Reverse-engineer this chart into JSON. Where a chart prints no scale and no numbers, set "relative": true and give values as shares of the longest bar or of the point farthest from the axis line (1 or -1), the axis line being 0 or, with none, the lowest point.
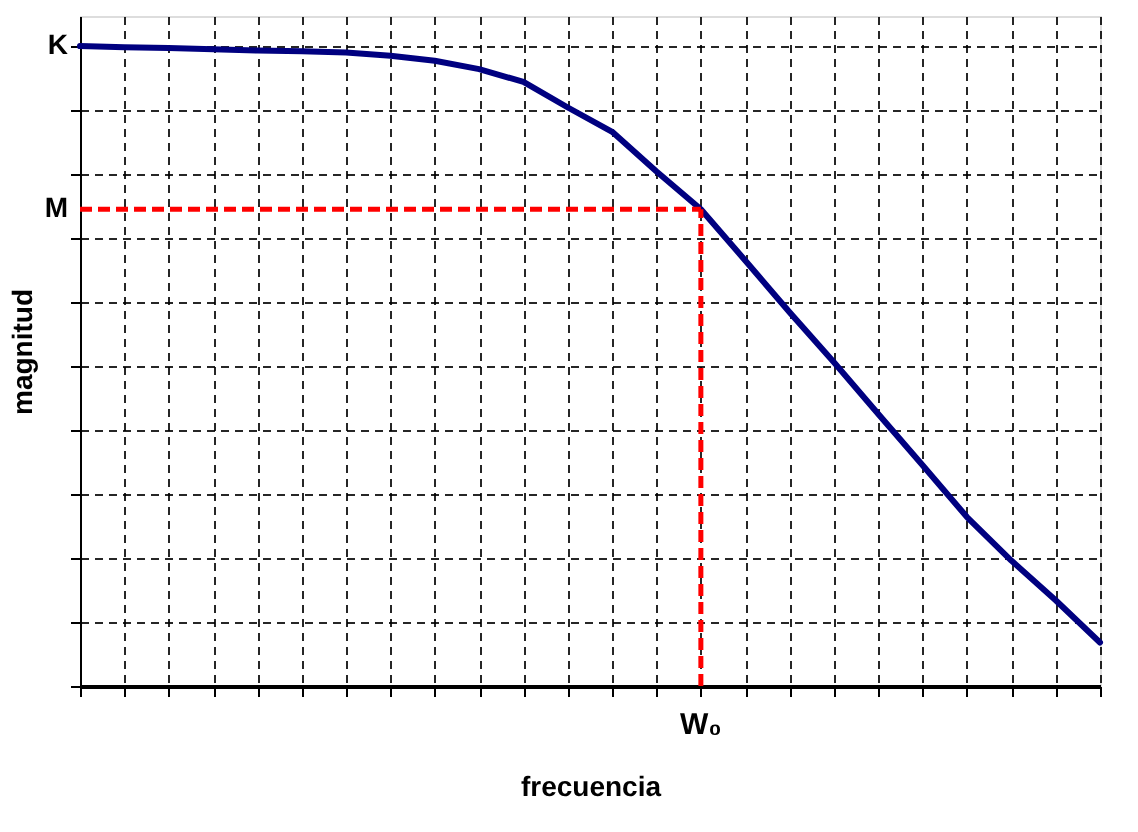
{
  "chart_data": {
    "type": "line",
    "relative": true,
    "xlabel": "frecuencia",
    "ylabel": "magnitud",
    "categories": [
      null,
      null,
      null,
      null,
      null,
      null,
      null,
      null,
      null,
      null,
      null,
      null,
      null,
      null,
      null,
      null,
      null,
      null,
      null,
      null,
      null,
      null,
      null,
      null
    ],
    "series": [
      {
        "color": "#000080",
        "values": [
          1.0,
          0.998,
          0.997,
          0.995,
          0.993,
          0.992,
          0.99,
          0.985,
          0.977,
          0.964,
          0.944,
          0.904,
          0.866,
          0.804,
          0.745,
          0.665,
          0.584,
          0.506,
          0.425,
          0.345,
          0.264,
          0.196,
          0.134,
          0.068
        ]
      }
    ],
    "annotations": [
      "K"
    ],
    "ref_lines": [
      {
        "axis": "y",
        "value": 0.745,
        "label": "M",
        "color": "#ff0000",
        "line_style": "dashed"
      },
      {
        "axis": "x",
        "label": "W₀",
        "color": "#ff0000",
        "line_style": "dashed"
      }
    ],
    "grid": true
  }
}
